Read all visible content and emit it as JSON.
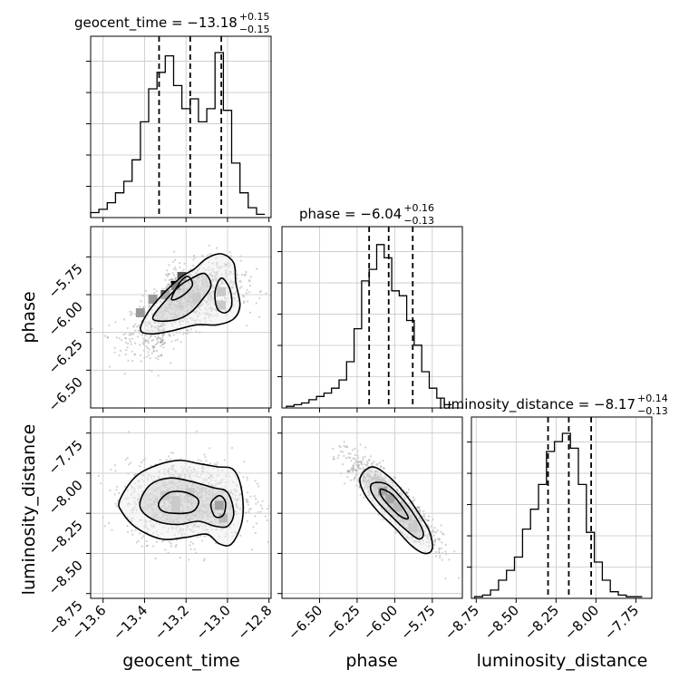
{
  "chart_data": {
    "type": "corner",
    "parameters": [
      "geocent_time",
      "phase",
      "luminosity_distance"
    ],
    "titles": [
      {
        "param": "geocent_time",
        "prefix": "geocent_time = ",
        "value": "−13.18",
        "plus": "+0.15",
        "minus": "−0.15"
      },
      {
        "param": "phase",
        "prefix": "phase = ",
        "value": "−6.04",
        "plus": "+0.16",
        "minus": "−0.13"
      },
      {
        "param": "luminosity_distance",
        "prefix": "luminosity_distance = ",
        "value": "−8.17",
        "plus": "+0.14",
        "minus": "−0.13"
      }
    ],
    "ranges": {
      "geocent_time": [
        -13.66,
        -12.79
      ],
      "phase": [
        -6.75,
        -5.55
      ],
      "luminosity_distance": [
        -8.78,
        -7.65
      ]
    },
    "ticks": {
      "geocent_time": [
        -13.6,
        -13.4,
        -13.2,
        -13.0,
        -12.8
      ],
      "phase": [
        -6.5,
        -6.25,
        -6.0,
        -5.75
      ],
      "luminosity_distance": [
        -8.75,
        -8.5,
        -8.25,
        -8.0,
        -7.75
      ]
    },
    "tick_labels": {
      "geocent_time": [
        "−13.6",
        "−13.4",
        "−13.2",
        "−13.0",
        "−12.8"
      ],
      "phase": [
        "−6.50",
        "−6.25",
        "−6.00",
        "−5.75"
      ],
      "luminosity_distance": [
        "−8.75",
        "−8.50",
        "−8.25",
        "−8.00",
        "−7.75"
      ]
    },
    "quantiles": {
      "geocent_time": [
        -13.33,
        -13.18,
        -13.03
      ],
      "phase": [
        -6.17,
        -6.04,
        -5.88
      ],
      "luminosity_distance": [
        -8.3,
        -8.17,
        -8.03
      ]
    },
    "histograms": {
      "geocent_time": {
        "edges": [
          -13.66,
          -13.62,
          -13.58,
          -13.54,
          -13.5,
          -13.46,
          -13.42,
          -13.38,
          -13.34,
          -13.3,
          -13.26,
          -13.22,
          -13.18,
          -13.14,
          -13.1,
          -13.06,
          -13.02,
          -12.98,
          -12.94,
          -12.9,
          -12.86,
          -12.82
        ],
        "counts": [
          0.03,
          0.05,
          0.09,
          0.15,
          0.22,
          0.35,
          0.58,
          0.78,
          0.88,
          0.98,
          0.8,
          0.66,
          0.72,
          0.58,
          0.66,
          1.0,
          0.65,
          0.33,
          0.15,
          0.06,
          0.02
        ]
      },
      "phase": {
        "edges": [
          -6.72,
          -6.67,
          -6.62,
          -6.57,
          -6.52,
          -6.47,
          -6.42,
          -6.37,
          -6.32,
          -6.27,
          -6.22,
          -6.17,
          -6.12,
          -6.07,
          -6.02,
          -5.97,
          -5.92,
          -5.87,
          -5.82,
          -5.77,
          -5.72,
          -5.67,
          -5.62
        ],
        "counts": [
          0.01,
          0.02,
          0.03,
          0.05,
          0.07,
          0.09,
          0.12,
          0.17,
          0.28,
          0.48,
          0.77,
          0.84,
          0.99,
          0.91,
          0.71,
          0.68,
          0.53,
          0.38,
          0.22,
          0.12,
          0.06,
          0.02
        ]
      },
      "luminosity_distance": {
        "edges": [
          -8.76,
          -8.71,
          -8.66,
          -8.61,
          -8.56,
          -8.51,
          -8.46,
          -8.41,
          -8.36,
          -8.31,
          -8.26,
          -8.21,
          -8.16,
          -8.11,
          -8.06,
          -8.01,
          -7.96,
          -7.91,
          -7.86,
          -7.81,
          -7.76,
          -7.71
        ],
        "counts": [
          0.01,
          0.02,
          0.05,
          0.11,
          0.17,
          0.25,
          0.42,
          0.54,
          0.69,
          0.89,
          0.95,
          1.0,
          0.91,
          0.69,
          0.4,
          0.22,
          0.11,
          0.04,
          0.02,
          0.01,
          0.01
        ]
      }
    },
    "contours": {
      "phase_vs_geocent_time": [
        {
          "points": [
            [
              -13.42,
              -6.23
            ],
            [
              -13.38,
              -6.11
            ],
            [
              -13.3,
              -5.98
            ],
            [
              -13.22,
              -5.88
            ],
            [
              -13.16,
              -5.83
            ],
            [
              -13.1,
              -5.76
            ],
            [
              -13.03,
              -5.73
            ],
            [
              -12.97,
              -5.79
            ],
            [
              -12.96,
              -5.92
            ],
            [
              -12.94,
              -6.07
            ],
            [
              -12.97,
              -6.16
            ],
            [
              -13.05,
              -6.2
            ],
            [
              -13.15,
              -6.2
            ],
            [
              -13.27,
              -6.24
            ],
            [
              -13.37,
              -6.26
            ]
          ]
        },
        {
          "points": [
            [
              -13.36,
              -6.16
            ],
            [
              -13.3,
              -6.04
            ],
            [
              -13.23,
              -5.94
            ],
            [
              -13.17,
              -5.89
            ],
            [
              -13.11,
              -5.86
            ],
            [
              -13.08,
              -5.94
            ],
            [
              -13.12,
              -6.03
            ],
            [
              -13.18,
              -6.12
            ],
            [
              -13.26,
              -6.17
            ]
          ]
        },
        {
          "points": [
            [
              -13.05,
              -6.09
            ],
            [
              -13.06,
              -5.98
            ],
            [
              -13.03,
              -5.89
            ],
            [
              -12.99,
              -5.96
            ],
            [
              -12.98,
              -6.07
            ],
            [
              -13.01,
              -6.12
            ]
          ]
        },
        {
          "points": [
            [
              -13.27,
              -6.03
            ],
            [
              -13.23,
              -5.92
            ],
            [
              -13.19,
              -5.88
            ],
            [
              -13.17,
              -5.94
            ],
            [
              -13.22,
              -6.01
            ]
          ]
        }
      ],
      "luminosity_distance_vs_geocent_time": [
        {
          "points": [
            [
              -13.52,
              -8.17
            ],
            [
              -13.45,
              -8.03
            ],
            [
              -13.36,
              -7.96
            ],
            [
              -13.24,
              -7.92
            ],
            [
              -13.14,
              -7.94
            ],
            [
              -13.05,
              -7.96
            ],
            [
              -12.97,
              -7.98
            ],
            [
              -12.93,
              -8.12
            ],
            [
              -12.93,
              -8.3
            ],
            [
              -12.98,
              -8.44
            ],
            [
              -13.04,
              -8.44
            ],
            [
              -13.1,
              -8.38
            ],
            [
              -13.2,
              -8.4
            ],
            [
              -13.32,
              -8.41
            ],
            [
              -13.44,
              -8.34
            ],
            [
              -13.51,
              -8.24
            ]
          ]
        },
        {
          "points": [
            [
              -13.42,
              -8.17
            ],
            [
              -13.37,
              -8.07
            ],
            [
              -13.28,
              -8.03
            ],
            [
              -13.18,
              -8.05
            ],
            [
              -13.07,
              -8.09
            ],
            [
              -13.0,
              -8.12
            ],
            [
              -12.97,
              -8.25
            ],
            [
              -13.0,
              -8.33
            ],
            [
              -13.06,
              -8.33
            ],
            [
              -13.14,
              -8.3
            ],
            [
              -13.24,
              -8.32
            ],
            [
              -13.34,
              -8.3
            ],
            [
              -13.41,
              -8.24
            ]
          ]
        },
        {
          "points": [
            [
              -13.33,
              -8.18
            ],
            [
              -13.28,
              -8.12
            ],
            [
              -13.2,
              -8.12
            ],
            [
              -13.14,
              -8.17
            ],
            [
              -13.17,
              -8.24
            ],
            [
              -13.26,
              -8.25
            ],
            [
              -13.32,
              -8.23
            ]
          ]
        },
        {
          "points": [
            [
              -13.08,
              -8.19
            ],
            [
              -13.04,
              -8.14
            ],
            [
              -13.01,
              -8.18
            ],
            [
              -13.02,
              -8.26
            ],
            [
              -13.06,
              -8.27
            ]
          ]
        }
      ],
      "luminosity_distance_vs_phase": [
        {
          "points": [
            [
              -6.23,
              -8.03
            ],
            [
              -6.15,
              -7.96
            ],
            [
              -6.04,
              -8.02
            ],
            [
              -5.93,
              -8.13
            ],
            [
              -5.84,
              -8.25
            ],
            [
              -5.77,
              -8.36
            ],
            [
              -5.75,
              -8.47
            ],
            [
              -5.8,
              -8.5
            ],
            [
              -5.89,
              -8.45
            ],
            [
              -6.0,
              -8.34
            ],
            [
              -6.11,
              -8.24
            ],
            [
              -6.2,
              -8.13
            ]
          ]
        },
        {
          "points": [
            [
              -6.14,
              -8.06
            ],
            [
              -6.05,
              -8.07
            ],
            [
              -5.96,
              -8.15
            ],
            [
              -5.87,
              -8.26
            ],
            [
              -5.81,
              -8.37
            ],
            [
              -5.84,
              -8.41
            ],
            [
              -5.93,
              -8.35
            ],
            [
              -6.03,
              -8.26
            ],
            [
              -6.12,
              -8.17
            ],
            [
              -6.16,
              -8.1
            ]
          ]
        },
        {
          "points": [
            [
              -6.09,
              -8.1
            ],
            [
              -6.02,
              -8.13
            ],
            [
              -5.95,
              -8.21
            ],
            [
              -5.91,
              -8.28
            ],
            [
              -5.96,
              -8.27
            ],
            [
              -6.04,
              -8.2
            ],
            [
              -6.09,
              -8.14
            ]
          ]
        }
      ]
    },
    "density_cells": {
      "phase_vs_geocent_time": [
        [
          -13.25,
          -5.94,
          3
        ],
        [
          -13.3,
          -6.0,
          2
        ],
        [
          -13.36,
          -6.03,
          1
        ],
        [
          -13.22,
          -5.88,
          2
        ],
        [
          -13.03,
          -6.07,
          1
        ],
        [
          -13.03,
          -5.98,
          1
        ],
        [
          -13.15,
          -6.02,
          1
        ],
        [
          -13.42,
          -6.12,
          1
        ]
      ],
      "luminosity_distance_vs_geocent_time": [
        [
          -13.25,
          -8.17,
          1
        ],
        [
          -13.25,
          -8.22,
          1
        ],
        [
          -13.04,
          -8.2,
          3
        ],
        [
          -13.02,
          -8.28,
          2
        ],
        [
          -13.3,
          -8.14,
          1
        ],
        [
          -13.18,
          -8.12,
          1
        ]
      ],
      "luminosity_distance_vs_phase": [
        [
          -6.08,
          -8.11,
          3
        ],
        [
          -6.03,
          -8.16,
          3
        ],
        [
          -5.98,
          -8.21,
          2
        ],
        [
          -6.1,
          -8.06,
          1
        ],
        [
          -5.93,
          -8.27,
          1
        ],
        [
          -5.88,
          -8.34,
          1
        ]
      ]
    },
    "scatter_points": 1400,
    "grid": true,
    "xlabel": [
      "geocent_time",
      "phase",
      "luminosity_distance"
    ],
    "ylabel": [
      "phase",
      "luminosity_distance"
    ]
  }
}
